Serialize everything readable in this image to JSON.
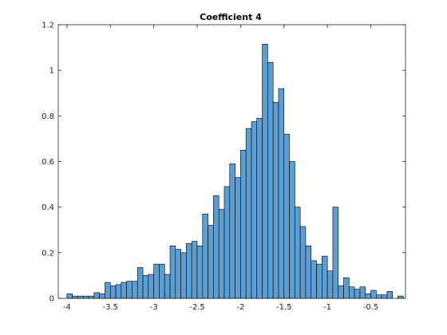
{
  "chart_data": {
    "type": "bar",
    "title": "Coefficient 4",
    "xlabel": "",
    "ylabel": "",
    "xlim": [
      -4.1,
      -0.1
    ],
    "ylim": [
      0,
      1.2
    ],
    "xticks": [
      -4,
      -3.5,
      -3,
      -2.5,
      -2,
      -1.5,
      -1,
      -0.5
    ],
    "xtick_labels": [
      "-4",
      "-3.5",
      "-3",
      "-2.5",
      "-2",
      "-1.5",
      "-1",
      "-0.5"
    ],
    "yticks": [
      0,
      0.2,
      0.4,
      0.6,
      0.8,
      1,
      1.2
    ],
    "ytick_labels": [
      "0",
      "0.2",
      "0.4",
      "0.6",
      "0.8",
      "1",
      "1.2"
    ],
    "grid": false,
    "bin_width": 0.0625,
    "bin_start": -4.0,
    "values": [
      0.02,
      0.01,
      0.01,
      0.01,
      0.01,
      0.025,
      0.02,
      0.07,
      0.055,
      0.06,
      0.07,
      0.075,
      0.075,
      0.135,
      0.1,
      0.105,
      0.15,
      0.15,
      0.105,
      0.23,
      0.215,
      0.2,
      0.24,
      0.25,
      0.23,
      0.37,
      0.32,
      0.45,
      0.39,
      0.49,
      0.59,
      0.53,
      0.65,
      0.745,
      0.775,
      0.79,
      1.115,
      1.035,
      0.86,
      0.92,
      0.72,
      0.6,
      0.4,
      0.315,
      0.23,
      0.165,
      0.15,
      0.185,
      0.12,
      0.4,
      0.055,
      0.09,
      0.05,
      0.04,
      0.05,
      0.02,
      0.035,
      0.015,
      0.015,
      0.03,
      0,
      0.01
    ],
    "colors": {
      "bar_fill": "#5b9fd2",
      "bar_edge": "#000000",
      "axis": "#262626"
    }
  }
}
